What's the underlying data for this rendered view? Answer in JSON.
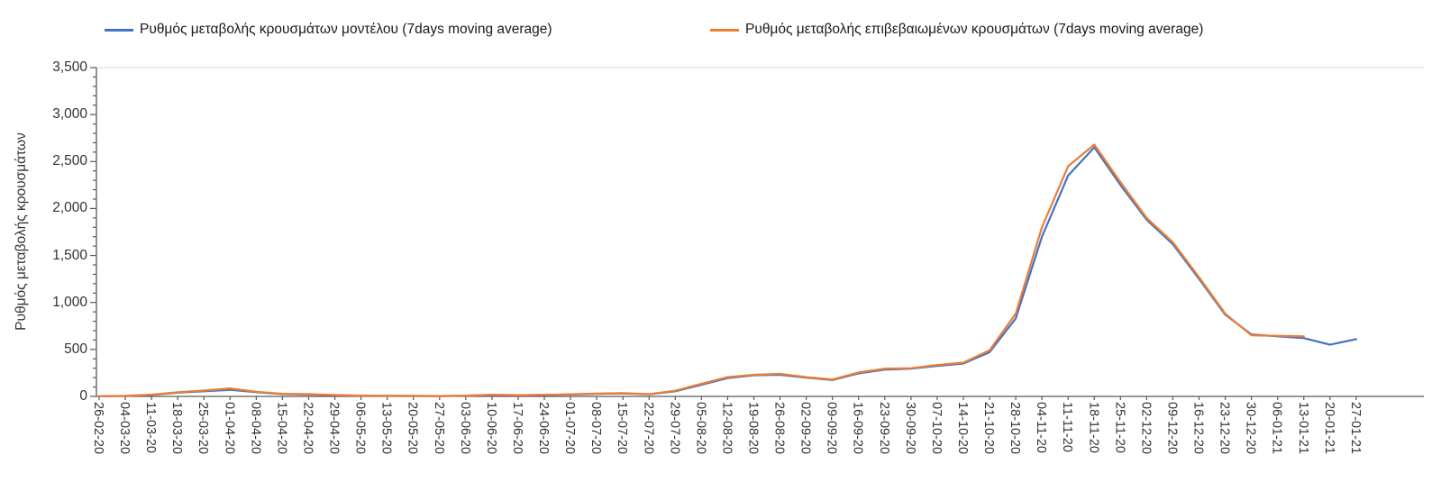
{
  "chart_data": {
    "type": "line",
    "title": "",
    "xlabel": "",
    "ylabel": "Ρυθμός μεταβολής κρουσμάτων",
    "ylim": [
      0,
      3500
    ],
    "y_ticks": {
      "values": [
        0,
        500,
        1000,
        1500,
        2000,
        2500,
        3000,
        3500
      ],
      "labels": [
        "0",
        "500",
        "1,000",
        "1,500",
        "2,000",
        "2,500",
        "3,000",
        "3,500"
      ]
    },
    "y_minor_tick_interval": 100,
    "grid": "top-boundary-line-only",
    "legend_position": "top",
    "categories": [
      "26-02-20",
      "04-03-20",
      "11-03-20",
      "18-03-20",
      "25-03-20",
      "01-04-20",
      "08-04-20",
      "15-04-20",
      "22-04-20",
      "29-04-20",
      "06-05-20",
      "13-05-20",
      "20-05-20",
      "27-05-20",
      "03-06-20",
      "10-06-20",
      "17-06-20",
      "24-06-20",
      "01-07-20",
      "08-07-20",
      "15-07-20",
      "22-07-20",
      "29-07-20",
      "05-08-20",
      "12-08-20",
      "19-08-20",
      "26-08-20",
      "02-09-20",
      "09-09-20",
      "16-09-20",
      "23-09-20",
      "30-09-20",
      "07-10-20",
      "14-10-20",
      "21-10-20",
      "28-10-20",
      "04-11-20",
      "11-11-20",
      "18-11-20",
      "25-11-20",
      "02-12-20",
      "09-12-20",
      "16-12-20",
      "23-12-20",
      "30-12-20",
      "06-01-21",
      "13-01-21",
      "20-01-21",
      "27-01-21"
    ],
    "series": [
      {
        "name": "Ρυθμός μεταβολής κρουσμάτων μοντέλου (7days moving average)",
        "color": "#4472C4",
        "values": [
          2,
          5,
          15,
          40,
          55,
          70,
          45,
          25,
          20,
          12,
          8,
          6,
          5,
          3,
          8,
          15,
          12,
          15,
          20,
          28,
          32,
          22,
          55,
          125,
          195,
          225,
          230,
          200,
          175,
          245,
          285,
          295,
          325,
          350,
          470,
          830,
          1700,
          2350,
          2650,
          2250,
          1880,
          1620,
          1250,
          870,
          660,
          640,
          620,
          550,
          610
        ]
      },
      {
        "name": "Ρυθμός μεταβολής επιβεβαιωμένων κρουσμάτων (7days moving average)",
        "color": "#ED7D31",
        "values": [
          2,
          6,
          18,
          45,
          62,
          85,
          50,
          28,
          24,
          14,
          9,
          7,
          6,
          4,
          9,
          17,
          13,
          16,
          22,
          30,
          35,
          24,
          60,
          135,
          205,
          230,
          240,
          205,
          180,
          255,
          295,
          300,
          335,
          360,
          490,
          880,
          1800,
          2450,
          2680,
          2280,
          1900,
          1640,
          1270,
          880,
          650,
          645,
          640,
          null,
          null
        ]
      }
    ],
    "axis_color": "#595959",
    "gridline_color": "#D9D9D9"
  }
}
